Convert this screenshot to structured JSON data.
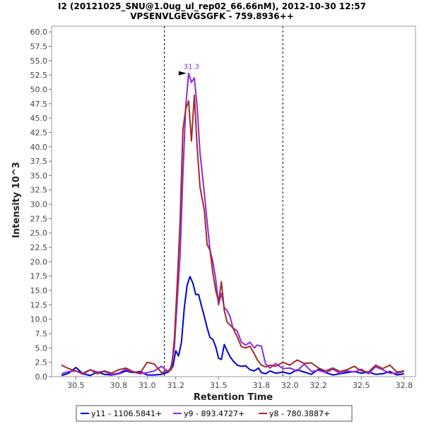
{
  "chart_data": {
    "type": "line",
    "title": "I2 (20121025_SNU@1.0ug_ul_rep02_66.66nM), 2012-10-30 12:57",
    "subtitle": "VPSENVLGEVGSGFK - 759.8936++",
    "xlabel": "Retention Time",
    "ylabel": "Intensity 10^3",
    "xlim": [
      30.33,
      32.88
    ],
    "ylim": [
      0,
      61
    ],
    "x_ticks": [
      30.5,
      30.8,
      31.0,
      31.2,
      31.5,
      31.8,
      32.0,
      32.2,
      32.5,
      32.8
    ],
    "x_tick_labels": [
      "30.5",
      "30.8",
      "31.0",
      "31.2",
      "31.5",
      "31.8",
      "32.0",
      "32.2",
      "32.5",
      "32.8"
    ],
    "y_ticks": [
      0.0,
      2.5,
      5.0,
      7.5,
      10.0,
      12.5,
      15.0,
      17.5,
      20.0,
      22.5,
      25.0,
      27.5,
      30.0,
      32.5,
      35.0,
      37.5,
      40.0,
      42.5,
      45.0,
      47.5,
      50.0,
      52.5,
      55.0,
      57.5,
      60.0
    ],
    "y_tick_labels": [
      "0.0",
      "2.5",
      "5.0",
      "7.5",
      "10.0",
      "12.5",
      "15.0",
      "17.5",
      "20.0",
      "22.5",
      "25.0",
      "27.5",
      "30.0",
      "32.5",
      "35.0",
      "37.5",
      "40.0",
      "42.5",
      "45.0",
      "47.5",
      "50.0",
      "52.5",
      "55.0",
      "57.5",
      "60.0"
    ],
    "vertical_markers": [
      31.12,
      31.95
    ],
    "peak_annotation": {
      "text": "31.3",
      "x": 31.29,
      "y": 52.8,
      "color": "#8a2be2"
    },
    "legend_position": "bottom",
    "series": [
      {
        "name": "y11 - 1106.5841+",
        "color": "#0000d8",
        "points": [
          [
            30.4,
            0.2
          ],
          [
            30.45,
            0.6
          ],
          [
            30.5,
            1.6
          ],
          [
            30.55,
            0.5
          ],
          [
            30.6,
            0.2
          ],
          [
            30.65,
            0.8
          ],
          [
            30.7,
            0.4
          ],
          [
            30.75,
            0.3
          ],
          [
            30.8,
            0.5
          ],
          [
            30.85,
            1.0
          ],
          [
            30.9,
            0.7
          ],
          [
            30.95,
            0.9
          ],
          [
            31.0,
            0.3
          ],
          [
            31.05,
            0.3
          ],
          [
            31.1,
            0.4
          ],
          [
            31.15,
            0.8
          ],
          [
            31.18,
            1.8
          ],
          [
            31.2,
            4.5
          ],
          [
            31.22,
            3.6
          ],
          [
            31.24,
            6.0
          ],
          [
            31.26,
            12.0
          ],
          [
            31.28,
            16.0
          ],
          [
            31.3,
            17.4
          ],
          [
            31.32,
            16.3
          ],
          [
            31.34,
            14.3
          ],
          [
            31.36,
            14.3
          ],
          [
            31.38,
            12.3
          ],
          [
            31.4,
            10.5
          ],
          [
            31.42,
            8.5
          ],
          [
            31.44,
            6.8
          ],
          [
            31.46,
            6.5
          ],
          [
            31.48,
            5.2
          ],
          [
            31.5,
            3.2
          ],
          [
            31.52,
            3.0
          ],
          [
            31.54,
            5.6
          ],
          [
            31.56,
            4.5
          ],
          [
            31.58,
            3.5
          ],
          [
            31.6,
            2.8
          ],
          [
            31.63,
            2.0
          ],
          [
            31.66,
            1.8
          ],
          [
            31.69,
            1.9
          ],
          [
            31.72,
            1.2
          ],
          [
            31.75,
            1.0
          ],
          [
            31.78,
            1.5
          ],
          [
            31.8,
            0.7
          ],
          [
            31.83,
            0.5
          ],
          [
            31.86,
            1.0
          ],
          [
            31.9,
            0.6
          ],
          [
            31.95,
            0.8
          ],
          [
            32.0,
            0.5
          ],
          [
            32.05,
            1.2
          ],
          [
            32.1,
            0.8
          ],
          [
            32.15,
            0.4
          ],
          [
            32.2,
            1.3
          ],
          [
            32.25,
            0.7
          ],
          [
            32.3,
            0.3
          ],
          [
            32.35,
            0.5
          ],
          [
            32.4,
            0.7
          ],
          [
            32.45,
            0.9
          ],
          [
            32.5,
            0.6
          ],
          [
            32.55,
            0.8
          ],
          [
            32.6,
            0.4
          ],
          [
            32.65,
            0.5
          ],
          [
            32.7,
            0.9
          ],
          [
            32.75,
            0.3
          ],
          [
            32.8,
            0.5
          ]
        ]
      },
      {
        "name": "y9 - 893.4727+",
        "color": "#8a2be2",
        "points": [
          [
            30.4,
            0.5
          ],
          [
            30.45,
            0.9
          ],
          [
            30.5,
            1.0
          ],
          [
            30.55,
            0.4
          ],
          [
            30.6,
            1.2
          ],
          [
            30.65,
            0.8
          ],
          [
            30.7,
            0.9
          ],
          [
            30.75,
            0.4
          ],
          [
            30.8,
            0.6
          ],
          [
            30.85,
            1.3
          ],
          [
            30.9,
            0.8
          ],
          [
            30.95,
            0.5
          ],
          [
            31.0,
            0.7
          ],
          [
            31.05,
            1.0
          ],
          [
            31.1,
            1.8
          ],
          [
            31.15,
            0.8
          ],
          [
            31.17,
            2.0
          ],
          [
            31.19,
            5.0
          ],
          [
            31.21,
            13.0
          ],
          [
            31.23,
            21.0
          ],
          [
            31.25,
            35.0
          ],
          [
            31.27,
            47.0
          ],
          [
            31.29,
            52.8
          ],
          [
            31.31,
            51.2
          ],
          [
            31.33,
            52.0
          ],
          [
            31.35,
            47.0
          ],
          [
            31.37,
            39.0
          ],
          [
            31.4,
            32.0
          ],
          [
            31.42,
            27.0
          ],
          [
            31.44,
            22.0
          ],
          [
            31.46,
            20.0
          ],
          [
            31.48,
            17.0
          ],
          [
            31.5,
            12.5
          ],
          [
            31.52,
            14.5
          ],
          [
            31.54,
            12.0
          ],
          [
            31.56,
            11.5
          ],
          [
            31.58,
            10.5
          ],
          [
            31.6,
            8.5
          ],
          [
            31.63,
            8.0
          ],
          [
            31.66,
            6.0
          ],
          [
            31.69,
            5.5
          ],
          [
            31.72,
            6.0
          ],
          [
            31.75,
            5.0
          ],
          [
            31.77,
            5.5
          ],
          [
            31.8,
            5.3
          ],
          [
            31.83,
            2.2
          ],
          [
            31.86,
            1.5
          ],
          [
            31.9,
            2.3
          ],
          [
            31.95,
            1.4
          ],
          [
            32.0,
            1.5
          ],
          [
            32.05,
            1.0
          ],
          [
            32.1,
            2.2
          ],
          [
            32.15,
            0.9
          ],
          [
            32.2,
            1.1
          ],
          [
            32.25,
            0.7
          ],
          [
            32.3,
            1.3
          ],
          [
            32.35,
            0.6
          ],
          [
            32.4,
            1.0
          ],
          [
            32.45,
            0.8
          ],
          [
            32.5,
            1.3
          ],
          [
            32.55,
            0.5
          ],
          [
            32.6,
            1.7
          ],
          [
            32.65,
            1.2
          ],
          [
            32.7,
            0.6
          ],
          [
            32.75,
            0.6
          ],
          [
            32.8,
            0.9
          ]
        ]
      },
      {
        "name": "y8 - 780.3887+",
        "color": "#a52a2a",
        "points": [
          [
            30.4,
            2.0
          ],
          [
            30.45,
            1.4
          ],
          [
            30.5,
            1.0
          ],
          [
            30.55,
            0.6
          ],
          [
            30.6,
            1.2
          ],
          [
            30.65,
            0.5
          ],
          [
            30.7,
            1.0
          ],
          [
            30.75,
            0.6
          ],
          [
            30.8,
            1.2
          ],
          [
            30.85,
            1.5
          ],
          [
            30.9,
            0.9
          ],
          [
            30.95,
            0.6
          ],
          [
            31.0,
            2.5
          ],
          [
            31.05,
            2.2
          ],
          [
            31.1,
            0.7
          ],
          [
            31.15,
            1.1
          ],
          [
            31.17,
            1.2
          ],
          [
            31.19,
            6.5
          ],
          [
            31.21,
            16.0
          ],
          [
            31.23,
            27.0
          ],
          [
            31.25,
            43.0
          ],
          [
            31.27,
            46.5
          ],
          [
            31.29,
            48.0
          ],
          [
            31.31,
            41.0
          ],
          [
            31.33,
            49.0
          ],
          [
            31.35,
            40.0
          ],
          [
            31.37,
            33.0
          ],
          [
            31.4,
            29.0
          ],
          [
            31.42,
            23.0
          ],
          [
            31.44,
            22.0
          ],
          [
            31.46,
            18.0
          ],
          [
            31.48,
            15.0
          ],
          [
            31.5,
            13.0
          ],
          [
            31.52,
            16.5
          ],
          [
            31.54,
            11.5
          ],
          [
            31.56,
            9.5
          ],
          [
            31.58,
            9.0
          ],
          [
            31.6,
            8.5
          ],
          [
            31.63,
            7.0
          ],
          [
            31.66,
            5.2
          ],
          [
            31.69,
            5.0
          ],
          [
            31.72,
            5.3
          ],
          [
            31.75,
            4.0
          ],
          [
            31.77,
            3.0
          ],
          [
            31.8,
            2.0
          ],
          [
            31.83,
            1.7
          ],
          [
            31.86,
            2.0
          ],
          [
            31.9,
            1.8
          ],
          [
            31.95,
            2.5
          ],
          [
            32.0,
            2.0
          ],
          [
            32.05,
            2.9
          ],
          [
            32.1,
            2.3
          ],
          [
            32.15,
            2.4
          ],
          [
            32.2,
            1.5
          ],
          [
            32.25,
            1.0
          ],
          [
            32.3,
            1.5
          ],
          [
            32.35,
            0.9
          ],
          [
            32.4,
            1.2
          ],
          [
            32.45,
            1.8
          ],
          [
            32.5,
            1.0
          ],
          [
            32.55,
            0.8
          ],
          [
            32.6,
            2.0
          ],
          [
            32.65,
            1.4
          ],
          [
            32.7,
            2.0
          ],
          [
            32.75,
            0.8
          ],
          [
            32.8,
            1.0
          ]
        ]
      }
    ]
  }
}
